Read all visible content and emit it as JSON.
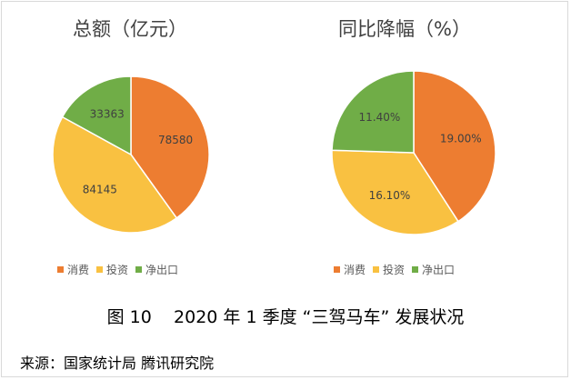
{
  "chart_data": [
    {
      "type": "pie",
      "title": "总额（亿元）",
      "categories": [
        "消费",
        "投资",
        "净出口"
      ],
      "values": [
        78580,
        84145,
        33363
      ],
      "labels": [
        "78580",
        "84145",
        "33363"
      ],
      "colors": [
        "#ED7D31",
        "#F9C141",
        "#70AD47"
      ],
      "legend": "bottom"
    },
    {
      "type": "pie",
      "title": "同比降幅（%）",
      "categories": [
        "消费",
        "投资",
        "净出口"
      ],
      "values": [
        19.0,
        16.1,
        11.4
      ],
      "labels": [
        "19.00%",
        "16.10%",
        "11.40%"
      ],
      "colors": [
        "#ED7D31",
        "#F9C141",
        "#70AD47"
      ],
      "legend": "bottom"
    }
  ],
  "caption": "图 10    2020 年 1 季度 “三驾马车” 发展状况",
  "source": "来源：国家统计局  腾讯研究院"
}
